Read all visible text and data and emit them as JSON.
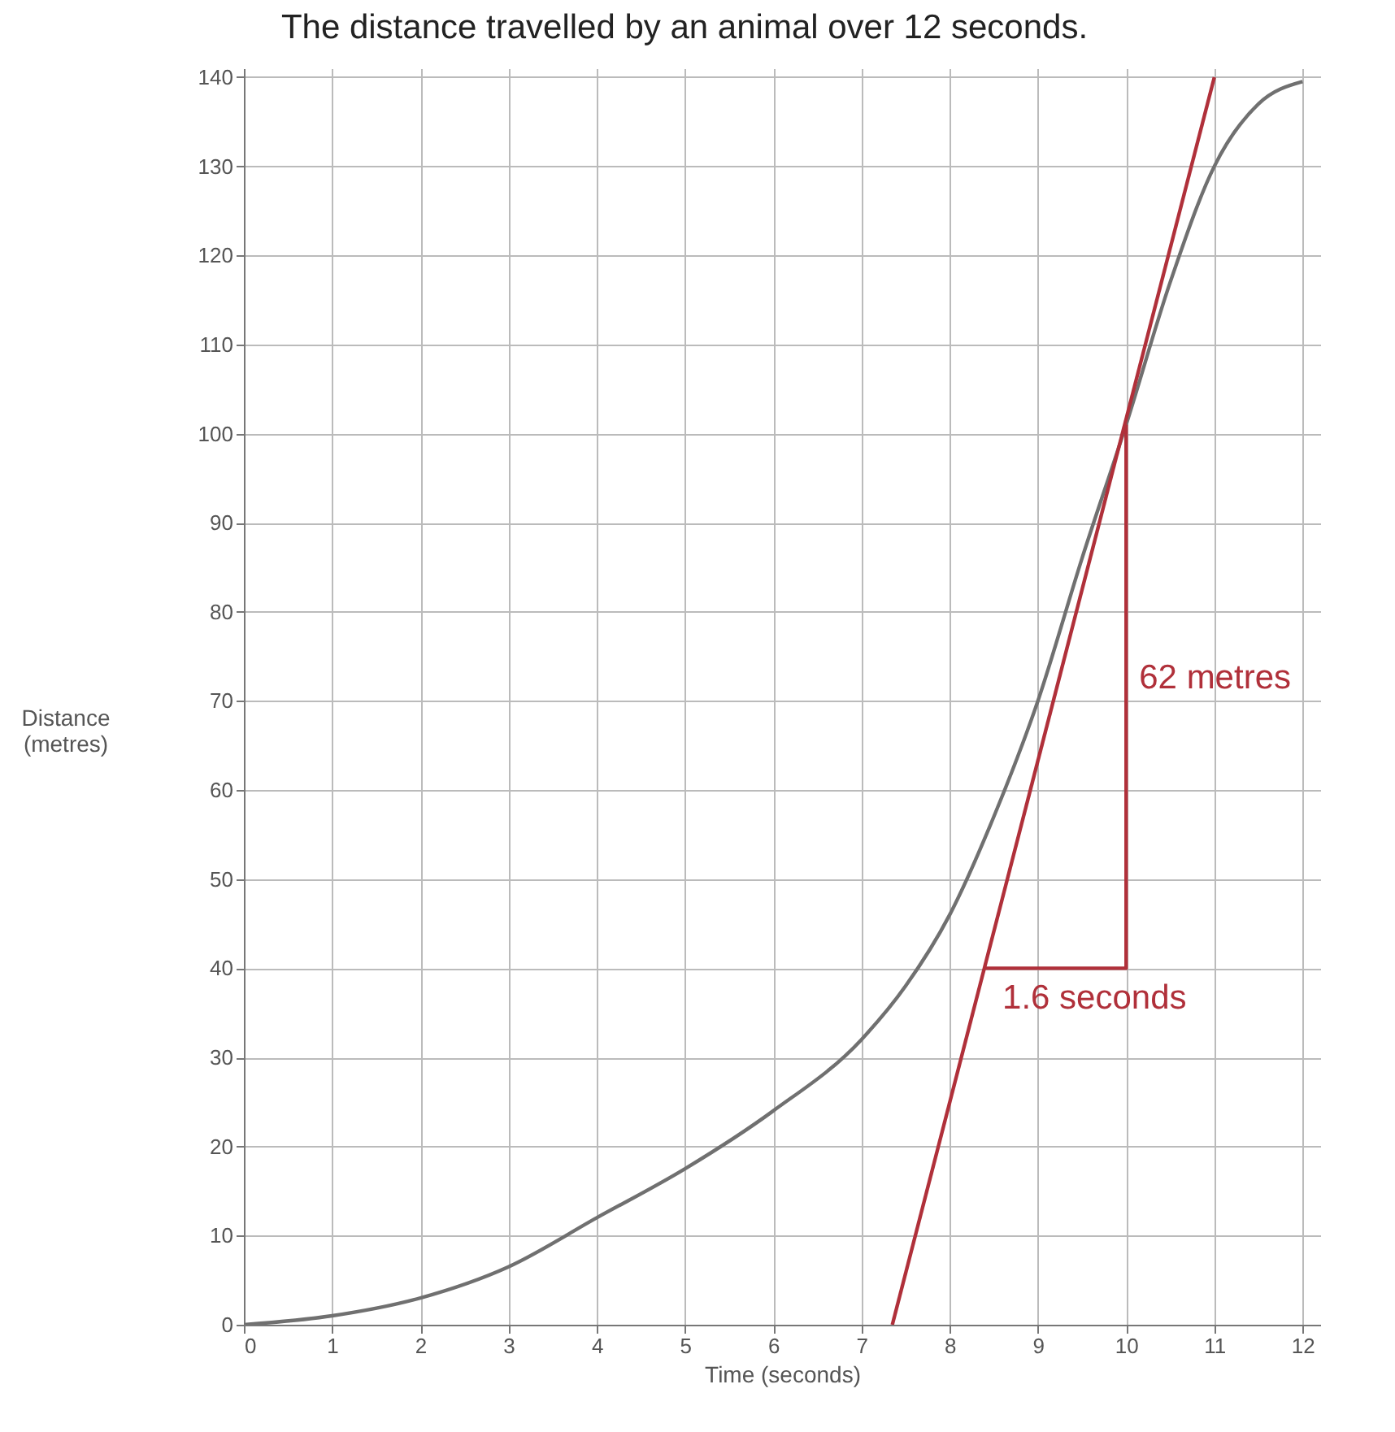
{
  "chart_data": {
    "type": "line",
    "title": "The distance travelled by an animal over 12 seconds.",
    "xlabel": "Time (seconds)",
    "ylabel": "Distance (metres)",
    "xlim": [
      0,
      12.2
    ],
    "ylim": [
      0,
      141
    ],
    "xticks": [
      0,
      1,
      2,
      3,
      4,
      5,
      6,
      7,
      8,
      9,
      10,
      11,
      12
    ],
    "yticks": [
      0,
      10,
      20,
      30,
      40,
      50,
      60,
      70,
      80,
      90,
      100,
      110,
      120,
      130,
      140
    ],
    "grid": true,
    "series": [
      {
        "color": "#707070",
        "x": [
          0,
          1,
          2,
          3,
          4,
          5,
          6,
          7,
          7.5,
          8,
          8.5,
          9,
          9.5,
          10,
          10.5,
          11,
          11.5,
          12
        ],
        "values": [
          0,
          1,
          3,
          6.5,
          12,
          17.5,
          24,
          32,
          38,
          46,
          57,
          70,
          86,
          101,
          117,
          130,
          137,
          139.5
        ]
      },
      {
        "color": "#b0303a",
        "x": [
          7.35,
          11.0
        ],
        "values": [
          0,
          140
        ]
      },
      {
        "color": "#b0303a",
        "x": [
          8.4,
          10,
          10
        ],
        "values": [
          40,
          40,
          101
        ]
      }
    ],
    "annotations": [
      {
        "text": "62 metres",
        "x": 10,
        "y": 76
      },
      {
        "text": "1.6 seconds",
        "x": 8.45,
        "y": 40
      }
    ]
  }
}
